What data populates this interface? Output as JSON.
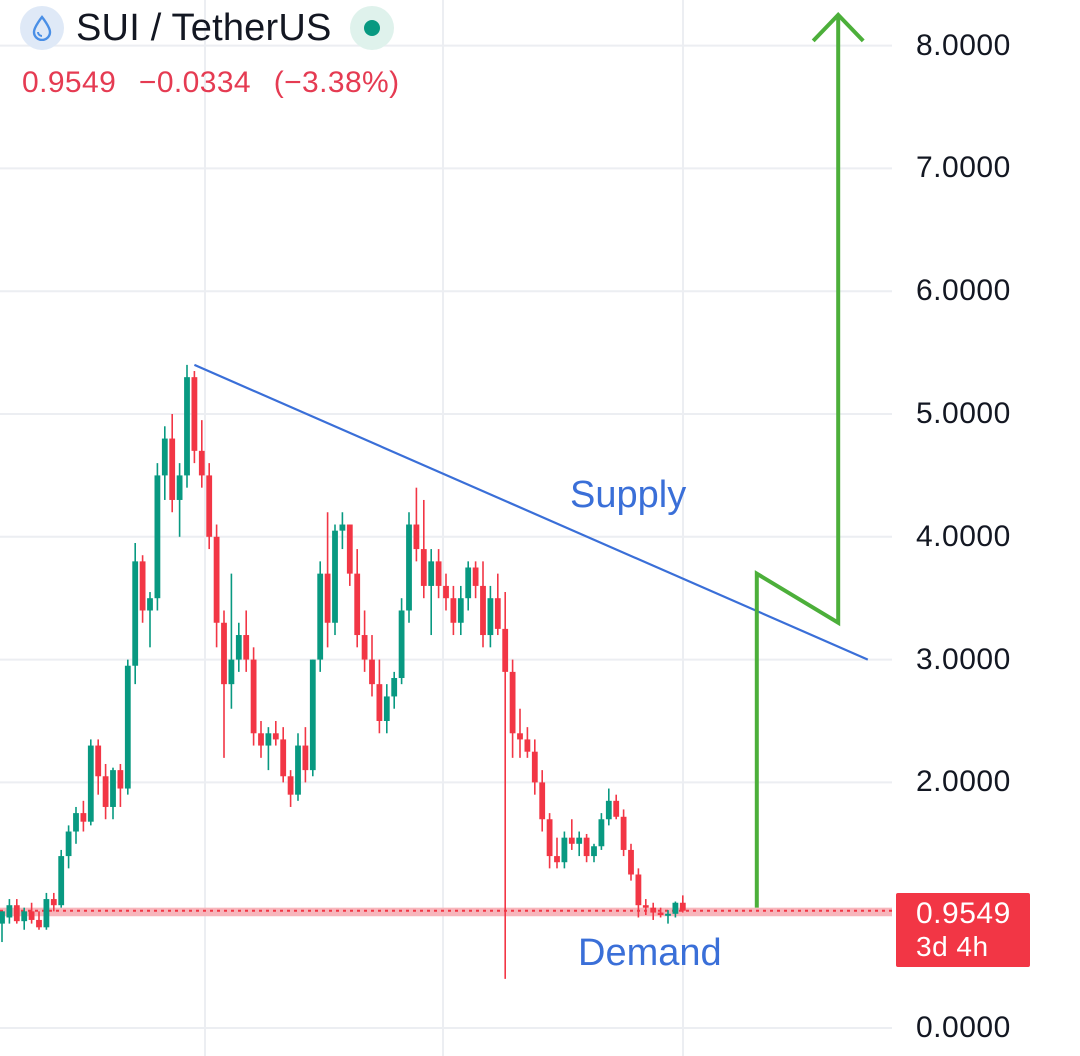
{
  "header": {
    "symbol": "SUI / TetherUS",
    "coin_icon": "droplet-icon",
    "status": "market-open-dot",
    "last_price": "0.9549",
    "change": "−0.0334",
    "change_pct": "(−3.38%)"
  },
  "price_label": {
    "value": "0.9549",
    "countdown": "3d 4h",
    "color": "#f23645"
  },
  "annotations": {
    "supply": "Supply",
    "demand": "Demand"
  },
  "colors": {
    "up": "#089981",
    "down": "#f23645",
    "supply_line": "#3a6fd8",
    "projection": "#4caf3a",
    "demand_band": "#f7b5bb",
    "grid": "#eceef2"
  },
  "chart_data": {
    "type": "candlestick",
    "title": "SUI / TetherUS",
    "ylim": [
      -0.05,
      8.3
    ],
    "y_ticks": [
      "8.0000",
      "7.0000",
      "6.0000",
      "5.0000",
      "4.0000",
      "3.0000",
      "2.0000",
      "0.0000"
    ],
    "y_tick_values": [
      8,
      7,
      6,
      5,
      4,
      3,
      2,
      0
    ],
    "grid": true,
    "last_price": 0.9549,
    "candles": [
      [
        0.85,
        0.95,
        0.7,
        0.95
      ],
      [
        0.9,
        1.05,
        0.85,
        1.0
      ],
      [
        1.0,
        1.05,
        0.85,
        0.87
      ],
      [
        0.87,
        0.98,
        0.8,
        0.95
      ],
      [
        0.95,
        1.02,
        0.85,
        0.88
      ],
      [
        0.88,
        0.95,
        0.8,
        0.82
      ],
      [
        0.82,
        1.1,
        0.8,
        1.05
      ],
      [
        1.05,
        1.1,
        0.95,
        1.0
      ],
      [
        1.0,
        1.45,
        0.98,
        1.4
      ],
      [
        1.4,
        1.65,
        1.3,
        1.6
      ],
      [
        1.6,
        1.8,
        1.5,
        1.75
      ],
      [
        1.75,
        1.85,
        1.6,
        1.68
      ],
      [
        1.68,
        2.35,
        1.65,
        2.3
      ],
      [
        2.3,
        2.35,
        1.9,
        2.05
      ],
      [
        2.05,
        2.15,
        1.7,
        1.8
      ],
      [
        1.8,
        2.12,
        1.7,
        2.1
      ],
      [
        2.1,
        2.15,
        1.8,
        1.95
      ],
      [
        1.95,
        3.0,
        1.9,
        2.95
      ],
      [
        2.95,
        3.95,
        2.8,
        3.8
      ],
      [
        3.8,
        3.85,
        3.3,
        3.4
      ],
      [
        3.4,
        3.55,
        3.1,
        3.5
      ],
      [
        3.5,
        4.6,
        3.4,
        4.5
      ],
      [
        4.5,
        4.9,
        4.3,
        4.8
      ],
      [
        4.8,
        5.0,
        4.2,
        4.3
      ],
      [
        4.3,
        4.6,
        4.0,
        4.5
      ],
      [
        4.5,
        5.4,
        4.4,
        5.3
      ],
      [
        5.3,
        5.35,
        4.6,
        4.7
      ],
      [
        4.7,
        4.95,
        4.4,
        4.5
      ],
      [
        4.5,
        4.6,
        3.9,
        4.0
      ],
      [
        4.0,
        4.1,
        3.1,
        3.3
      ],
      [
        3.3,
        3.4,
        2.2,
        2.8
      ],
      [
        2.8,
        3.7,
        2.6,
        3.0
      ],
      [
        3.0,
        3.3,
        2.9,
        3.2
      ],
      [
        3.2,
        3.4,
        2.9,
        3.0
      ],
      [
        3.0,
        3.1,
        2.3,
        2.4
      ],
      [
        2.4,
        2.5,
        2.2,
        2.3
      ],
      [
        2.3,
        2.45,
        2.1,
        2.4
      ],
      [
        2.4,
        2.5,
        2.3,
        2.35
      ],
      [
        2.35,
        2.45,
        2.0,
        2.05
      ],
      [
        2.05,
        2.1,
        1.8,
        1.9
      ],
      [
        1.9,
        2.4,
        1.85,
        2.3
      ],
      [
        2.3,
        2.45,
        2.0,
        2.1
      ],
      [
        2.1,
        3.0,
        2.05,
        3.0
      ],
      [
        3.0,
        3.8,
        2.9,
        3.7
      ],
      [
        3.7,
        4.2,
        3.1,
        3.3
      ],
      [
        3.3,
        4.1,
        3.2,
        4.05
      ],
      [
        4.05,
        4.2,
        3.9,
        4.1
      ],
      [
        4.1,
        4.1,
        3.6,
        3.7
      ],
      [
        3.7,
        3.9,
        3.1,
        3.2
      ],
      [
        3.2,
        3.4,
        2.9,
        3.0
      ],
      [
        3.0,
        3.2,
        2.7,
        2.8
      ],
      [
        2.8,
        3.0,
        2.4,
        2.5
      ],
      [
        2.5,
        2.8,
        2.4,
        2.7
      ],
      [
        2.7,
        2.9,
        2.6,
        2.85
      ],
      [
        2.85,
        3.5,
        2.8,
        3.4
      ],
      [
        3.4,
        4.2,
        3.3,
        4.1
      ],
      [
        4.1,
        4.4,
        3.8,
        3.9
      ],
      [
        3.9,
        4.3,
        3.5,
        3.6
      ],
      [
        3.6,
        3.9,
        3.2,
        3.8
      ],
      [
        3.8,
        3.9,
        3.5,
        3.6
      ],
      [
        3.6,
        3.7,
        3.4,
        3.5
      ],
      [
        3.5,
        3.6,
        3.2,
        3.3
      ],
      [
        3.3,
        3.6,
        3.2,
        3.5
      ],
      [
        3.5,
        3.8,
        3.4,
        3.75
      ],
      [
        3.75,
        3.8,
        3.5,
        3.6
      ],
      [
        3.6,
        3.8,
        3.1,
        3.2
      ],
      [
        3.2,
        3.6,
        3.1,
        3.5
      ],
      [
        3.5,
        3.7,
        3.2,
        3.25
      ],
      [
        3.25,
        3.55,
        0.4,
        2.9
      ],
      [
        2.9,
        3.0,
        2.2,
        2.4
      ],
      [
        2.4,
        2.6,
        2.2,
        2.35
      ],
      [
        2.35,
        2.45,
        2.2,
        2.25
      ],
      [
        2.25,
        2.35,
        1.9,
        2.0
      ],
      [
        2.0,
        2.1,
        1.6,
        1.7
      ],
      [
        1.7,
        1.75,
        1.3,
        1.4
      ],
      [
        1.4,
        1.55,
        1.3,
        1.35
      ],
      [
        1.35,
        1.6,
        1.3,
        1.55
      ],
      [
        1.55,
        1.7,
        1.45,
        1.5
      ],
      [
        1.5,
        1.6,
        1.4,
        1.55
      ],
      [
        1.55,
        1.58,
        1.35,
        1.4
      ],
      [
        1.4,
        1.5,
        1.35,
        1.48
      ],
      [
        1.48,
        1.75,
        1.45,
        1.7
      ],
      [
        1.7,
        1.95,
        1.65,
        1.85
      ],
      [
        1.85,
        1.9,
        1.7,
        1.72
      ],
      [
        1.72,
        1.78,
        1.4,
        1.45
      ],
      [
        1.45,
        1.5,
        1.2,
        1.25
      ],
      [
        1.25,
        1.3,
        0.9,
        1.0
      ],
      [
        1.0,
        1.05,
        0.92,
        0.98
      ],
      [
        0.98,
        1.02,
        0.88,
        0.94
      ],
      [
        0.94,
        0.98,
        0.9,
        0.92
      ],
      [
        0.92,
        0.96,
        0.85,
        0.93
      ],
      [
        0.93,
        1.03,
        0.9,
        1.02
      ],
      [
        1.02,
        1.08,
        0.94,
        0.955
      ]
    ],
    "supply_line": {
      "start": [
        26,
        5.4
      ],
      "end": [
        117,
        3.0
      ],
      "label": "Supply"
    },
    "demand_zone": {
      "low": 0.91,
      "high": 0.98,
      "label": "Demand"
    },
    "projection_path": [
      [
        102,
        0.98
      ],
      [
        102,
        3.7
      ],
      [
        113,
        3.3
      ],
      [
        113,
        8.25
      ]
    ]
  }
}
